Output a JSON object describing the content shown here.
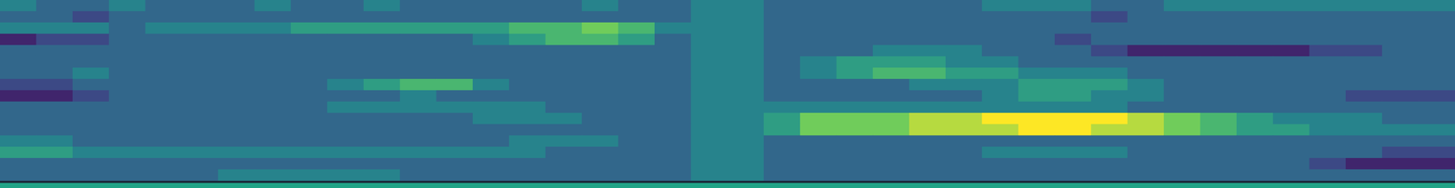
{
  "chart_data": {
    "type": "heatmap",
    "tick_labels": false,
    "color_range": [
      0,
      9
    ],
    "cells": [
      [
        4,
        3,
        3,
        4,
        3,
        3,
        3,
        4,
        3,
        3,
        4,
        3,
        3,
        3,
        3,
        3,
        4,
        3,
        3,
        4,
        4,
        3,
        3,
        3,
        3,
        3,
        3,
        4,
        4,
        4,
        3,
        3,
        4,
        4,
        4,
        4,
        4,
        4,
        4,
        4
      ],
      [
        3,
        3,
        2,
        3,
        3,
        3,
        3,
        3,
        3,
        3,
        3,
        3,
        3,
        3,
        3,
        3,
        3,
        3,
        3,
        4,
        4,
        3,
        3,
        3,
        3,
        3,
        3,
        3,
        3,
        3,
        2,
        3,
        3,
        3,
        3,
        3,
        3,
        3,
        3,
        3
      ],
      [
        4,
        4,
        4,
        3,
        4,
        4,
        4,
        4,
        5,
        5,
        5,
        5,
        5,
        5,
        6,
        6,
        7,
        6,
        4,
        4,
        4,
        3,
        3,
        3,
        3,
        3,
        3,
        3,
        3,
        3,
        3,
        3,
        3,
        3,
        3,
        3,
        3,
        3,
        3,
        3
      ],
      [
        1,
        2,
        2,
        3,
        3,
        3,
        3,
        3,
        3,
        3,
        3,
        3,
        3,
        4,
        5,
        6,
        6,
        5,
        3,
        4,
        4,
        3,
        3,
        3,
        3,
        3,
        3,
        3,
        3,
        2,
        3,
        3,
        3,
        3,
        3,
        3,
        3,
        3,
        3,
        3
      ],
      [
        3,
        3,
        3,
        3,
        3,
        3,
        3,
        3,
        3,
        3,
        3,
        3,
        3,
        3,
        3,
        3,
        3,
        3,
        3,
        4,
        4,
        3,
        3,
        3,
        4,
        4,
        4,
        3,
        3,
        3,
        2,
        1,
        1,
        1,
        1,
        1,
        2,
        2,
        3,
        3
      ],
      [
        3,
        3,
        3,
        3,
        3,
        3,
        3,
        3,
        3,
        3,
        3,
        3,
        3,
        3,
        3,
        3,
        3,
        3,
        3,
        4,
        4,
        3,
        4,
        5,
        5,
        5,
        4,
        4,
        3,
        3,
        3,
        3,
        3,
        3,
        3,
        3,
        3,
        3,
        3,
        3
      ],
      [
        3,
        3,
        4,
        3,
        3,
        3,
        3,
        3,
        3,
        3,
        3,
        3,
        3,
        3,
        3,
        3,
        3,
        3,
        3,
        4,
        4,
        3,
        4,
        5,
        6,
        6,
        5,
        5,
        4,
        4,
        4,
        3,
        3,
        3,
        3,
        3,
        3,
        3,
        3,
        3
      ],
      [
        2,
        2,
        3,
        3,
        3,
        3,
        3,
        3,
        3,
        4,
        5,
        6,
        6,
        4,
        3,
        3,
        3,
        3,
        3,
        4,
        4,
        3,
        3,
        3,
        3,
        4,
        4,
        4,
        5,
        5,
        5,
        4,
        3,
        3,
        3,
        3,
        3,
        3,
        3,
        3
      ],
      [
        1,
        1,
        2,
        3,
        3,
        3,
        3,
        3,
        3,
        3,
        3,
        4,
        3,
        3,
        3,
        3,
        3,
        3,
        3,
        4,
        4,
        3,
        3,
        3,
        3,
        3,
        3,
        4,
        5,
        5,
        4,
        4,
        3,
        3,
        3,
        3,
        3,
        2,
        2,
        2
      ],
      [
        3,
        3,
        3,
        3,
        3,
        3,
        3,
        3,
        3,
        4,
        4,
        4,
        4,
        4,
        4,
        3,
        3,
        3,
        3,
        4,
        4,
        4,
        4,
        4,
        4,
        4,
        4,
        4,
        4,
        4,
        4,
        3,
        3,
        3,
        3,
        3,
        3,
        3,
        3,
        3
      ],
      [
        3,
        3,
        3,
        3,
        3,
        3,
        3,
        3,
        3,
        3,
        3,
        3,
        3,
        4,
        4,
        4,
        3,
        3,
        3,
        4,
        4,
        5,
        7,
        7,
        7,
        8,
        8,
        9,
        9,
        9,
        9,
        8,
        7,
        6,
        5,
        4,
        4,
        4,
        3,
        3
      ],
      [
        3,
        3,
        3,
        3,
        3,
        3,
        3,
        3,
        3,
        3,
        3,
        3,
        3,
        3,
        3,
        3,
        3,
        3,
        3,
        4,
        4,
        5,
        7,
        7,
        7,
        8,
        8,
        8,
        9,
        9,
        8,
        8,
        7,
        6,
        5,
        5,
        4,
        4,
        4,
        4
      ],
      [
        4,
        4,
        3,
        3,
        3,
        3,
        3,
        3,
        3,
        3,
        3,
        3,
        3,
        3,
        4,
        4,
        4,
        3,
        3,
        4,
        4,
        3,
        3,
        3,
        3,
        3,
        3,
        3,
        3,
        3,
        3,
        3,
        3,
        3,
        3,
        3,
        3,
        3,
        3,
        3
      ],
      [
        5,
        5,
        4,
        4,
        4,
        4,
        4,
        4,
        4,
        4,
        4,
        4,
        4,
        4,
        4,
        3,
        3,
        3,
        3,
        4,
        4,
        3,
        3,
        3,
        3,
        3,
        3,
        4,
        4,
        4,
        4,
        3,
        3,
        3,
        3,
        3,
        3,
        3,
        2,
        2
      ],
      [
        3,
        3,
        3,
        3,
        3,
        3,
        3,
        3,
        3,
        3,
        3,
        3,
        3,
        3,
        3,
        3,
        3,
        3,
        3,
        4,
        4,
        3,
        3,
        3,
        3,
        3,
        3,
        3,
        3,
        3,
        3,
        3,
        3,
        3,
        3,
        3,
        2,
        1,
        1,
        1
      ],
      [
        3,
        3,
        3,
        3,
        3,
        3,
        4,
        4,
        4,
        4,
        4,
        3,
        3,
        3,
        3,
        3,
        3,
        3,
        3,
        4,
        4,
        3,
        3,
        3,
        3,
        3,
        3,
        3,
        3,
        3,
        3,
        3,
        3,
        3,
        3,
        3,
        3,
        3,
        3,
        3
      ]
    ]
  }
}
